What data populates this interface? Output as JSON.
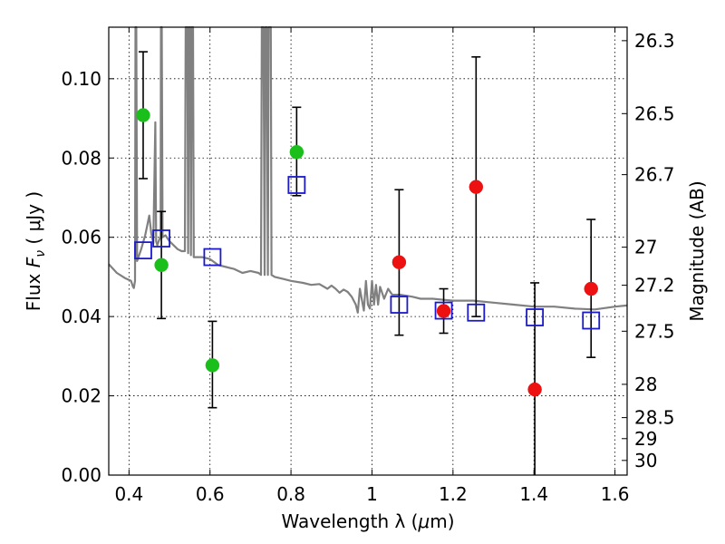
{
  "chart_data": {
    "type": "scatter",
    "xlabel_prefix": "Wavelength  λ (",
    "xlabel_mu": "μ",
    "xlabel_suffix": "m)",
    "ylabel_prefix": "Flux  ",
    "ylabel_symbol": "F",
    "ylabel_sub": "ν",
    "ylabel_suffix": "  ( μJy )",
    "y2label": "Magnitude (AB)",
    "xlim": [
      0.35,
      1.63
    ],
    "ylim": [
      0.0,
      0.113
    ],
    "grid": true,
    "xticks": [
      0.4,
      0.6,
      0.8,
      1.0,
      1.2,
      1.4,
      1.6
    ],
    "xtick_labels": [
      "0.4",
      "0.6",
      "0.8",
      "1",
      "1.2",
      "1.4",
      "1.6"
    ],
    "yticks": [
      0.0,
      0.02,
      0.04,
      0.06,
      0.08,
      0.1
    ],
    "ytick_labels": [
      "0.00",
      "0.02",
      "0.04",
      "0.06",
      "0.08",
      "0.10"
    ],
    "y2ticks": [
      {
        "label": "26.3",
        "flux": 0.1096
      },
      {
        "label": "26.5",
        "flux": 0.0912
      },
      {
        "label": "26.7",
        "flux": 0.0758
      },
      {
        "label": "27",
        "flux": 0.0575
      },
      {
        "label": "27.2",
        "flux": 0.0479
      },
      {
        "label": "27.5",
        "flux": 0.0363
      },
      {
        "label": "28",
        "flux": 0.0229
      },
      {
        "label": "28.5",
        "flux": 0.0145
      },
      {
        "label": "29",
        "flux": 0.0092
      },
      {
        "label": "30",
        "flux": 0.0037
      }
    ],
    "colors": {
      "green": "#1bbf1b",
      "red": "#ee1111",
      "blue": "#1a1acc",
      "spectrum": "#808080"
    },
    "series": [
      {
        "name": "green-points",
        "marker": "circle",
        "color": "green",
        "points": [
          {
            "x": 0.435,
            "y": 0.0908,
            "err_lo": 0.0748,
            "err_hi": 0.1068
          },
          {
            "x": 0.48,
            "y": 0.053,
            "err_lo": 0.0395,
            "err_hi": 0.0665
          },
          {
            "x": 0.606,
            "y": 0.0277,
            "err_lo": 0.017,
            "err_hi": 0.0388
          },
          {
            "x": 0.814,
            "y": 0.0815,
            "err_lo": 0.0705,
            "err_hi": 0.0928
          }
        ]
      },
      {
        "name": "red-points",
        "marker": "circle",
        "color": "red",
        "points": [
          {
            "x": 1.067,
            "y": 0.0537,
            "err_lo": 0.0353,
            "err_hi": 0.072
          },
          {
            "x": 1.177,
            "y": 0.0414,
            "err_lo": 0.0358,
            "err_hi": 0.047
          },
          {
            "x": 1.257,
            "y": 0.0727,
            "err_lo": 0.04,
            "err_hi": 0.1055
          },
          {
            "x": 1.402,
            "y": 0.0216,
            "err_lo": 0.0,
            "err_hi": 0.0485
          },
          {
            "x": 1.541,
            "y": 0.047,
            "err_lo": 0.0297,
            "err_hi": 0.0645
          }
        ]
      },
      {
        "name": "model-points",
        "marker": "open-square",
        "color": "blue",
        "points": [
          {
            "x": 0.435,
            "y": 0.0567
          },
          {
            "x": 0.48,
            "y": 0.0597
          },
          {
            "x": 0.606,
            "y": 0.055
          },
          {
            "x": 0.814,
            "y": 0.0732
          },
          {
            "x": 1.067,
            "y": 0.043
          },
          {
            "x": 1.177,
            "y": 0.0415
          },
          {
            "x": 1.257,
            "y": 0.041
          },
          {
            "x": 1.402,
            "y": 0.0398
          },
          {
            "x": 1.541,
            "y": 0.039
          }
        ]
      }
    ],
    "spectrum": [
      [
        0.35,
        0.0532
      ],
      [
        0.37,
        0.051
      ],
      [
        0.39,
        0.0497
      ],
      [
        0.405,
        0.049
      ],
      [
        0.41,
        0.0475
      ],
      [
        0.412,
        0.0472
      ],
      [
        0.415,
        0.049
      ],
      [
        0.416,
        0.113
      ],
      [
        0.418,
        0.113
      ],
      [
        0.42,
        0.054
      ],
      [
        0.43,
        0.057
      ],
      [
        0.44,
        0.0605
      ],
      [
        0.445,
        0.063
      ],
      [
        0.45,
        0.0655
      ],
      [
        0.455,
        0.061
      ],
      [
        0.46,
        0.0585
      ],
      [
        0.465,
        0.089
      ],
      [
        0.467,
        0.059
      ],
      [
        0.47,
        0.058
      ],
      [
        0.475,
        0.0595
      ],
      [
        0.478,
        0.06
      ],
      [
        0.479,
        0.113
      ],
      [
        0.481,
        0.113
      ],
      [
        0.483,
        0.06
      ],
      [
        0.49,
        0.0605
      ],
      [
        0.5,
        0.059
      ],
      [
        0.51,
        0.058
      ],
      [
        0.52,
        0.057
      ],
      [
        0.53,
        0.0565
      ],
      [
        0.538,
        0.0565
      ],
      [
        0.54,
        0.113
      ],
      [
        0.544,
        0.113
      ],
      [
        0.546,
        0.056
      ],
      [
        0.548,
        0.113
      ],
      [
        0.551,
        0.113
      ],
      [
        0.553,
        0.0555
      ],
      [
        0.555,
        0.113
      ],
      [
        0.558,
        0.113
      ],
      [
        0.56,
        0.055
      ],
      [
        0.58,
        0.055
      ],
      [
        0.6,
        0.0545
      ],
      [
        0.62,
        0.053
      ],
      [
        0.64,
        0.0525
      ],
      [
        0.66,
        0.052
      ],
      [
        0.68,
        0.051
      ],
      [
        0.7,
        0.0515
      ],
      [
        0.72,
        0.051
      ],
      [
        0.726,
        0.0505
      ],
      [
        0.728,
        0.113
      ],
      [
        0.732,
        0.113
      ],
      [
        0.735,
        0.0505
      ],
      [
        0.737,
        0.113
      ],
      [
        0.74,
        0.113
      ],
      [
        0.743,
        0.0505
      ],
      [
        0.745,
        0.113
      ],
      [
        0.75,
        0.113
      ],
      [
        0.752,
        0.0505
      ],
      [
        0.76,
        0.05
      ],
      [
        0.78,
        0.0495
      ],
      [
        0.8,
        0.049
      ],
      [
        0.83,
        0.0485
      ],
      [
        0.85,
        0.048
      ],
      [
        0.87,
        0.0482
      ],
      [
        0.89,
        0.047
      ],
      [
        0.9,
        0.0478
      ],
      [
        0.91,
        0.047
      ],
      [
        0.92,
        0.046
      ],
      [
        0.93,
        0.0468
      ],
      [
        0.94,
        0.0462
      ],
      [
        0.95,
        0.045
      ],
      [
        0.96,
        0.043
      ],
      [
        0.965,
        0.041
      ],
      [
        0.97,
        0.047
      ],
      [
        0.98,
        0.0415
      ],
      [
        0.985,
        0.049
      ],
      [
        0.99,
        0.043
      ],
      [
        0.995,
        0.042
      ],
      [
        1.0,
        0.049
      ],
      [
        1.005,
        0.043
      ],
      [
        1.01,
        0.048
      ],
      [
        1.015,
        0.043
      ],
      [
        1.02,
        0.0475
      ],
      [
        1.03,
        0.0445
      ],
      [
        1.04,
        0.047
      ],
      [
        1.05,
        0.0455
      ],
      [
        1.07,
        0.0455
      ],
      [
        1.1,
        0.045
      ],
      [
        1.12,
        0.0445
      ],
      [
        1.15,
        0.0445
      ],
      [
        1.18,
        0.0442
      ],
      [
        1.2,
        0.044
      ],
      [
        1.25,
        0.044
      ],
      [
        1.3,
        0.0435
      ],
      [
        1.35,
        0.043
      ],
      [
        1.4,
        0.0425
      ],
      [
        1.45,
        0.0425
      ],
      [
        1.5,
        0.042
      ],
      [
        1.55,
        0.0418
      ],
      [
        1.6,
        0.0425
      ],
      [
        1.63,
        0.0428
      ]
    ]
  }
}
